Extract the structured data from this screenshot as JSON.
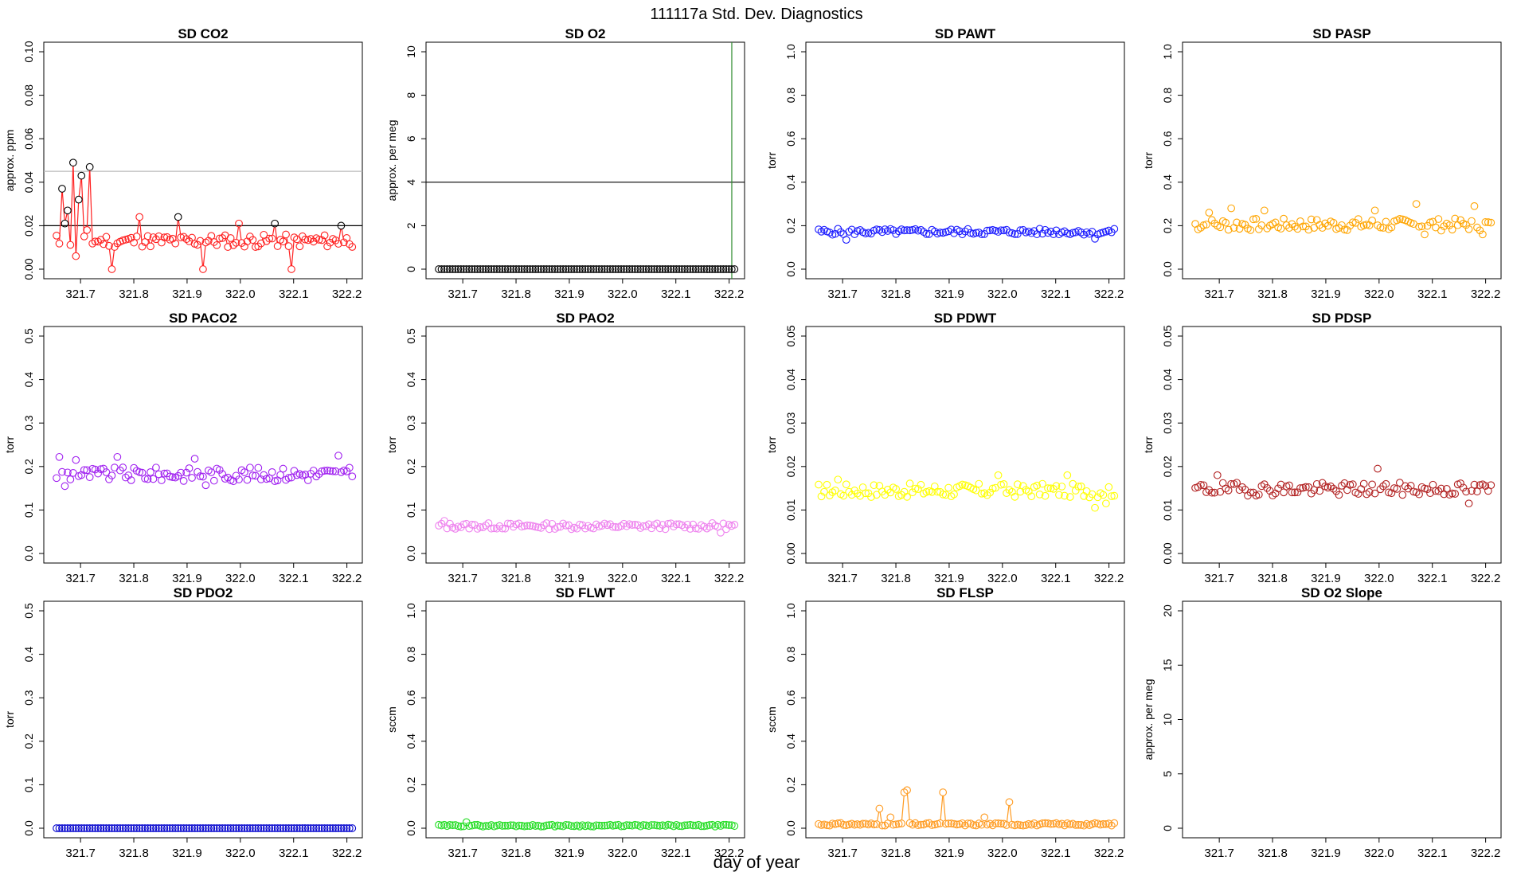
{
  "figure": {
    "title": "111117a   Std. Dev. Diagnostics",
    "xlabel": "day of year"
  },
  "chart_data": [
    {
      "type": "scatter",
      "title": "SD CO2",
      "ylabel": "approx. ppm",
      "color": "#ff2020",
      "ylim": [
        0,
        0.1
      ],
      "yticks": [
        "0.00",
        "0.02",
        "0.04",
        "0.06",
        "0.08",
        "0.10"
      ],
      "ytick_values": [
        0,
        0.02,
        0.04,
        0.06,
        0.08,
        0.1
      ],
      "xlim": [
        321.64,
        322.22
      ],
      "xticks": [
        "321.7",
        "321.8",
        "321.9",
        "322.0",
        "322.1",
        "322.2"
      ],
      "xtick_values": [
        321.7,
        321.8,
        321.9,
        322.0,
        322.1,
        322.2
      ],
      "hlines": [
        {
          "y": 0.02,
          "color": "#000000"
        },
        {
          "y": 0.045,
          "color": "#bbbbbb"
        }
      ],
      "connected": true,
      "base": 0.013,
      "jitter": 0.003,
      "seed": 11,
      "spikes": [
        [
          2,
          0.037,
          "#000000"
        ],
        [
          3,
          0.021,
          "#000000"
        ],
        [
          4,
          0.027,
          "#000000"
        ],
        [
          6,
          0.049,
          "#000000"
        ],
        [
          7,
          0.006,
          "#ff2020"
        ],
        [
          8,
          0.032,
          "#000000"
        ],
        [
          9,
          0.043,
          "#000000"
        ],
        [
          11,
          0.018,
          "#ff2020"
        ],
        [
          12,
          0.047,
          "#000000"
        ],
        [
          20,
          0.0,
          "#ff2020"
        ],
        [
          30,
          0.024,
          "#ff2020"
        ],
        [
          44,
          0.024,
          "#000000"
        ],
        [
          53,
          0.0,
          "#ff2020"
        ],
        [
          66,
          0.021,
          "#ff2020"
        ],
        [
          79,
          0.021,
          "#000000"
        ],
        [
          85,
          0.0,
          "#ff2020"
        ],
        [
          103,
          0.02,
          "#000000"
        ]
      ]
    },
    {
      "type": "scatter",
      "title": "SD O2",
      "ylabel": "approx. per meg",
      "color": "#000000",
      "ylim": [
        0,
        10
      ],
      "yticks": [
        "0",
        "2",
        "4",
        "6",
        "8",
        "10"
      ],
      "ytick_values": [
        0,
        2,
        4,
        6,
        8,
        10
      ],
      "xlim": [
        321.64,
        322.22
      ],
      "xticks": [
        "321.7",
        "321.8",
        "321.9",
        "322.0",
        "322.1",
        "322.2"
      ],
      "xtick_values": [
        321.7,
        321.8,
        321.9,
        322.0,
        322.1,
        322.2
      ],
      "hlines": [
        {
          "y": 4,
          "color": "#000000"
        }
      ],
      "vlines": [
        {
          "x": 322.205,
          "color": "#2e8b2e"
        }
      ],
      "connected": false,
      "base": 0.0,
      "jitter": 0.0,
      "seed": 3,
      "spikes": []
    },
    {
      "type": "scatter",
      "title": "SD PAWT",
      "ylabel": "torr",
      "color": "#1a1aff",
      "ylim": [
        0,
        1.0
      ],
      "yticks": [
        "0.0",
        "0.2",
        "0.4",
        "0.6",
        "0.8",
        "1.0"
      ],
      "ytick_values": [
        0,
        0.2,
        0.4,
        0.6,
        0.8,
        1.0
      ],
      "xlim": [
        321.64,
        322.22
      ],
      "xticks": [
        "321.7",
        "321.8",
        "321.9",
        "322.0",
        "322.1",
        "322.2"
      ],
      "xtick_values": [
        321.7,
        321.8,
        321.9,
        322.0,
        322.1,
        322.2
      ],
      "connected": false,
      "base": 0.172,
      "jitter": 0.014,
      "seed": 5,
      "spikes": [
        [
          10,
          0.135,
          "#1a1aff"
        ],
        [
          100,
          0.14,
          "#1a1aff"
        ]
      ]
    },
    {
      "type": "scatter",
      "title": "SD PASP",
      "ylabel": "torr",
      "color": "#ffa500",
      "ylim": [
        0,
        1.0
      ],
      "yticks": [
        "0.0",
        "0.2",
        "0.4",
        "0.6",
        "0.8",
        "1.0"
      ],
      "ytick_values": [
        0,
        0.2,
        0.4,
        0.6,
        0.8,
        1.0
      ],
      "xlim": [
        321.64,
        322.22
      ],
      "xticks": [
        "321.7",
        "321.8",
        "321.9",
        "322.0",
        "322.1",
        "322.2"
      ],
      "xtick_values": [
        321.7,
        321.8,
        321.9,
        322.0,
        322.1,
        322.2
      ],
      "connected": false,
      "base": 0.205,
      "jitter": 0.028,
      "seed": 7,
      "spikes": [
        [
          5,
          0.26,
          "#ffa500"
        ],
        [
          13,
          0.28,
          "#ffa500"
        ],
        [
          25,
          0.27,
          "#ffa500"
        ],
        [
          65,
          0.27,
          "#ffa500"
        ],
        [
          80,
          0.3,
          "#ffa500"
        ],
        [
          83,
          0.16,
          "#ffa500"
        ],
        [
          101,
          0.29,
          "#ffa500"
        ],
        [
          104,
          0.16,
          "#ffa500"
        ]
      ]
    },
    {
      "type": "scatter",
      "title": "SD PACO2",
      "ylabel": "torr",
      "color": "#a020f0",
      "ylim": [
        0,
        0.5
      ],
      "yticks": [
        "0.0",
        "0.1",
        "0.2",
        "0.3",
        "0.4",
        "0.5"
      ],
      "ytick_values": [
        0,
        0.1,
        0.2,
        0.3,
        0.4,
        0.5
      ],
      "xlim": [
        321.64,
        322.22
      ],
      "xticks": [
        "321.7",
        "321.8",
        "321.9",
        "322.0",
        "322.1",
        "322.2"
      ],
      "xtick_values": [
        321.7,
        321.8,
        321.9,
        322.0,
        322.1,
        322.2
      ],
      "connected": false,
      "base": 0.182,
      "jitter": 0.016,
      "seed": 9,
      "spikes": [
        [
          1,
          0.222,
          "#a020f0"
        ],
        [
          3,
          0.155,
          "#a020f0"
        ],
        [
          7,
          0.215,
          "#a020f0"
        ],
        [
          22,
          0.222,
          "#a020f0"
        ],
        [
          50,
          0.218,
          "#a020f0"
        ],
        [
          54,
          0.157,
          "#a020f0"
        ],
        [
          102,
          0.225,
          "#a020f0"
        ]
      ]
    },
    {
      "type": "scatter",
      "title": "SD PAO2",
      "ylabel": "torr",
      "color": "#ee82ee",
      "ylim": [
        0,
        0.5
      ],
      "yticks": [
        "0.0",
        "0.1",
        "0.2",
        "0.3",
        "0.4",
        "0.5"
      ],
      "ytick_values": [
        0,
        0.1,
        0.2,
        0.3,
        0.4,
        0.5
      ],
      "xlim": [
        321.64,
        322.22
      ],
      "xticks": [
        "321.7",
        "321.8",
        "321.9",
        "322.0",
        "322.1",
        "322.2"
      ],
      "xtick_values": [
        321.7,
        321.8,
        321.9,
        322.0,
        322.1,
        322.2
      ],
      "connected": false,
      "base": 0.063,
      "jitter": 0.007,
      "seed": 13,
      "spikes": [
        [
          2,
          0.075,
          "#ee82ee"
        ],
        [
          102,
          0.048,
          "#ee82ee"
        ]
      ]
    },
    {
      "type": "scatter",
      "title": "SD PDWT",
      "ylabel": "torr",
      "color": "#ffff00",
      "ylim": [
        0,
        0.05
      ],
      "yticks": [
        "0.00",
        "0.01",
        "0.02",
        "0.03",
        "0.04",
        "0.05"
      ],
      "ytick_values": [
        0,
        0.01,
        0.02,
        0.03,
        0.04,
        0.05
      ],
      "xlim": [
        321.64,
        322.22
      ],
      "xticks": [
        "321.7",
        "321.8",
        "321.9",
        "322.0",
        "322.1",
        "322.2"
      ],
      "xtick_values": [
        321.7,
        321.8,
        321.9,
        322.0,
        322.1,
        322.2
      ],
      "connected": false,
      "base": 0.0145,
      "jitter": 0.0016,
      "seed": 17,
      "spikes": [
        [
          7,
          0.017,
          "#ffff00"
        ],
        [
          65,
          0.018,
          "#ffff00"
        ],
        [
          90,
          0.018,
          "#ffff00"
        ],
        [
          100,
          0.0105,
          "#ffff00"
        ],
        [
          104,
          0.0115,
          "#ffff00"
        ]
      ]
    },
    {
      "type": "scatter",
      "title": "SD PDSP",
      "ylabel": "torr",
      "color": "#b22222",
      "ylim": [
        0,
        0.05
      ],
      "yticks": [
        "0.00",
        "0.01",
        "0.02",
        "0.03",
        "0.04",
        "0.05"
      ],
      "ytick_values": [
        0,
        0.01,
        0.02,
        0.03,
        0.04,
        0.05
      ],
      "xlim": [
        321.64,
        322.22
      ],
      "xticks": [
        "321.7",
        "321.8",
        "321.9",
        "322.0",
        "322.1",
        "322.2"
      ],
      "xtick_values": [
        321.7,
        321.8,
        321.9,
        322.0,
        322.1,
        322.2
      ],
      "connected": false,
      "base": 0.0148,
      "jitter": 0.0015,
      "seed": 19,
      "spikes": [
        [
          8,
          0.018,
          "#b22222"
        ],
        [
          66,
          0.0195,
          "#b22222"
        ],
        [
          99,
          0.0115,
          "#b22222"
        ]
      ]
    },
    {
      "type": "scatter",
      "title": "SD PDO2",
      "ylabel": "torr",
      "color": "#0000cd",
      "ylim": [
        0,
        0.5
      ],
      "yticks": [
        "0.0",
        "0.1",
        "0.2",
        "0.3",
        "0.4",
        "0.5"
      ],
      "ytick_values": [
        0,
        0.1,
        0.2,
        0.3,
        0.4,
        0.5
      ],
      "xlim": [
        321.64,
        322.22
      ],
      "xticks": [
        "321.7",
        "321.8",
        "321.9",
        "322.0",
        "322.1",
        "322.2"
      ],
      "xtick_values": [
        321.7,
        321.8,
        321.9,
        322.0,
        322.1,
        322.2
      ],
      "connected": false,
      "base": 0.0,
      "jitter": 0.0,
      "seed": 23,
      "spikes": []
    },
    {
      "type": "scatter",
      "title": "SD FLWT",
      "ylabel": "sccm",
      "color": "#22dd22",
      "ylim": [
        0,
        1.0
      ],
      "yticks": [
        "0.0",
        "0.2",
        "0.4",
        "0.6",
        "0.8",
        "1.0"
      ],
      "ytick_values": [
        0,
        0.2,
        0.4,
        0.6,
        0.8,
        1.0
      ],
      "xlim": [
        321.64,
        322.22
      ],
      "xticks": [
        "321.7",
        "321.8",
        "321.9",
        "322.0",
        "322.1",
        "322.2"
      ],
      "xtick_values": [
        321.7,
        321.8,
        321.9,
        322.0,
        322.1,
        322.2
      ],
      "connected": false,
      "base": 0.012,
      "jitter": 0.004,
      "seed": 29,
      "spikes": [
        [
          10,
          0.028,
          "#22dd22"
        ]
      ]
    },
    {
      "type": "scatter",
      "title": "SD FLSP",
      "ylabel": "sccm",
      "color": "#ff9a1f",
      "ylim": [
        0,
        1.0
      ],
      "yticks": [
        "0.0",
        "0.2",
        "0.4",
        "0.6",
        "0.8",
        "1.0"
      ],
      "ytick_values": [
        0,
        0.2,
        0.4,
        0.6,
        0.8,
        1.0
      ],
      "xlim": [
        321.64,
        322.22
      ],
      "xticks": [
        "321.7",
        "321.8",
        "321.9",
        "322.0",
        "322.1",
        "322.2"
      ],
      "xtick_values": [
        321.7,
        321.8,
        321.9,
        322.0,
        322.1,
        322.2
      ],
      "connected": true,
      "base": 0.018,
      "jitter": 0.006,
      "seed": 31,
      "spikes": [
        [
          22,
          0.09,
          "#ff9a1f"
        ],
        [
          26,
          0.05,
          "#ff9a1f"
        ],
        [
          31,
          0.165,
          "#ff9a1f"
        ],
        [
          32,
          0.175,
          "#ff9a1f"
        ],
        [
          45,
          0.165,
          "#ff9a1f"
        ],
        [
          60,
          0.05,
          "#ff9a1f"
        ],
        [
          69,
          0.12,
          "#ff9a1f"
        ]
      ]
    },
    {
      "type": "scatter",
      "title": "SD O2 Slope",
      "ylabel": "approx. per meg",
      "color": "#000000",
      "ylim": [
        0,
        20
      ],
      "yticks": [
        "0",
        "5",
        "10",
        "15",
        "20"
      ],
      "ytick_values": [
        0,
        5,
        10,
        15,
        20
      ],
      "xlim": [
        321.64,
        322.22
      ],
      "xticks": [
        "321.7",
        "321.8",
        "321.9",
        "322.0",
        "322.1",
        "322.2"
      ],
      "xtick_values": [
        321.7,
        321.8,
        321.9,
        322.0,
        322.1,
        322.2
      ],
      "connected": false,
      "base": 0.0,
      "jitter": 0.0,
      "seed": 37,
      "spikes": [],
      "empty": true
    }
  ]
}
